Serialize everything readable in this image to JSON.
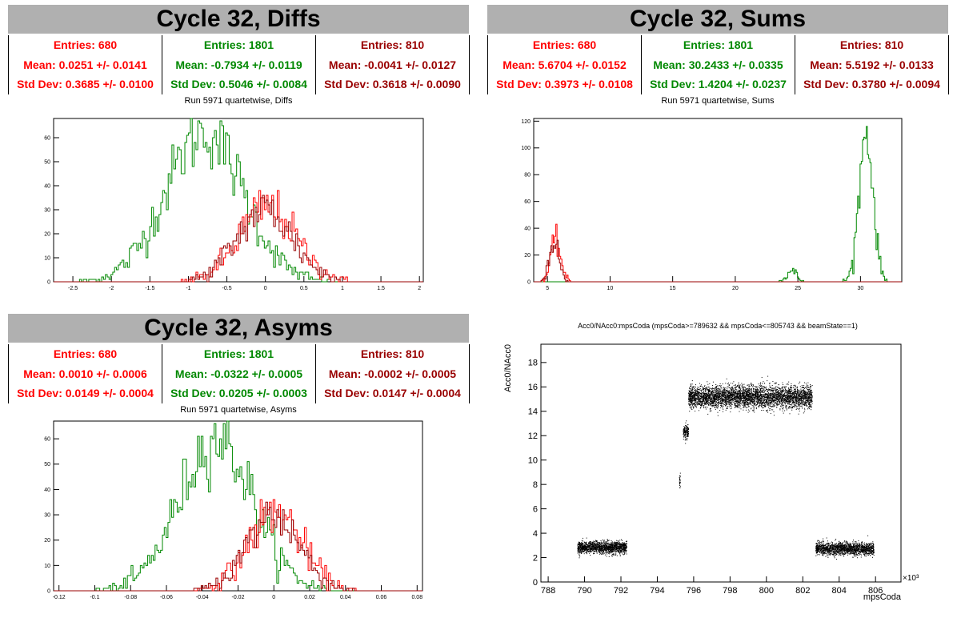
{
  "colors": {
    "red": "#ff0000",
    "green": "#008800",
    "darkred": "#990000",
    "header_bg": "#b0b0b0"
  },
  "panels": {
    "diffs": {
      "title": "Cycle 32, Diffs",
      "subtitle": "Run 5971 quartetwise, Diffs",
      "stats": [
        {
          "entries": "Entries: 680",
          "mean": "Mean: 0.0251 +/- 0.0141",
          "std": "Std Dev: 0.3685 +/- 0.0100",
          "color": "#ff0000"
        },
        {
          "entries": "Entries: 1801",
          "mean": "Mean: -0.7934 +/- 0.0119",
          "std": "Std Dev: 0.5046 +/- 0.0084",
          "color": "#008800"
        },
        {
          "entries": "Entries: 810",
          "mean": "Mean: -0.0041 +/- 0.0127",
          "std": "Std Dev: 0.3618 +/- 0.0090",
          "color": "#990000"
        }
      ]
    },
    "sums": {
      "title": "Cycle 32, Sums",
      "subtitle": "Run 5971 quartetwise, Sums",
      "stats": [
        {
          "entries": "Entries: 680",
          "mean": "Mean: 5.6704 +/- 0.0152",
          "std": "Std Dev: 0.3973 +/- 0.0108",
          "color": "#ff0000"
        },
        {
          "entries": "Entries: 1801",
          "mean": "Mean: 30.2433 +/- 0.0335",
          "std": "Std Dev: 1.4204 +/- 0.0237",
          "color": "#008800"
        },
        {
          "entries": "Entries: 810",
          "mean": "Mean: 5.5192 +/- 0.0133",
          "std": "Std Dev: 0.3780 +/- 0.0094",
          "color": "#990000"
        }
      ]
    },
    "asyms": {
      "title": "Cycle 32, Asyms",
      "subtitle": "Run 5971 quartetwise, Asyms",
      "stats": [
        {
          "entries": "Entries: 680",
          "mean": "Mean: 0.0010 +/- 0.0006",
          "std": "Std Dev: 0.0149 +/- 0.0004",
          "color": "#ff0000"
        },
        {
          "entries": "Entries: 1801",
          "mean": "Mean: -0.0322 +/- 0.0005",
          "std": "Std Dev: 0.0205 +/- 0.0003",
          "color": "#008800"
        },
        {
          "entries": "Entries: 810",
          "mean": "Mean: -0.0002 +/- 0.0005",
          "std": "Std Dev: 0.0147 +/- 0.0004",
          "color": "#990000"
        }
      ]
    },
    "scatter": {
      "title": "Acc0/NAcc0:mpsCoda (mpsCoda>=789632 && mpsCoda<=805743 && beamState==1)"
    }
  },
  "chart_data": [
    {
      "type": "histogram",
      "id": "diffs",
      "xlim": [
        -2.75,
        2.05
      ],
      "ylim": [
        0,
        68
      ],
      "xticks": [
        -2.5,
        -2,
        -1.5,
        -1,
        -0.5,
        0,
        0.5,
        1,
        1.5,
        2
      ],
      "xtick_labels": [
        "-2.5",
        "-2",
        "-1.5",
        "-1",
        "-0.5",
        "0",
        "0.5",
        "1",
        "1.5",
        "2"
      ],
      "yticks": [
        0,
        10,
        20,
        30,
        40,
        50,
        60
      ],
      "ytick_labels": [
        "0",
        "10",
        "20",
        "30",
        "40",
        "50",
        "60"
      ],
      "series": [
        {
          "color": "#008800",
          "entries": 1801,
          "mean": -0.7934,
          "std": 0.5046,
          "peak": 62
        },
        {
          "color": "#ff0000",
          "entries": 680,
          "mean": 0.0251,
          "std": 0.3685,
          "peak": 31
        },
        {
          "color": "#990000",
          "entries": 810,
          "mean": -0.0041,
          "std": 0.3618,
          "peak": 30
        }
      ]
    },
    {
      "type": "histogram",
      "id": "sums",
      "xlim": [
        3.9,
        33.3
      ],
      "ylim": [
        0,
        122
      ],
      "xticks": [
        5,
        10,
        15,
        20,
        25,
        30
      ],
      "xtick_labels": [
        "5",
        "10",
        "15",
        "20",
        "25",
        "30"
      ],
      "yticks": [
        0,
        20,
        40,
        60,
        80,
        100,
        120
      ],
      "ytick_labels": [
        "0",
        "20",
        "40",
        "60",
        "80",
        "100",
        "120"
      ],
      "series": [
        {
          "color": "#008800",
          "entries": 1801,
          "components": [
            {
              "mean": 30.45,
              "std": 0.55,
              "peak": 112
            },
            {
              "mean": 24.5,
              "std": 0.4,
              "peak": 8
            }
          ]
        },
        {
          "color": "#ff0000",
          "entries": 680,
          "components": [
            {
              "mean": 5.67,
              "std": 0.4,
              "peak": 30
            }
          ]
        },
        {
          "color": "#990000",
          "entries": 810,
          "components": [
            {
              "mean": 5.52,
              "std": 0.38,
              "peak": 31
            }
          ]
        }
      ]
    },
    {
      "type": "histogram",
      "id": "asyms",
      "xlim": [
        -0.123,
        0.083
      ],
      "ylim": [
        0,
        67
      ],
      "xticks": [
        -0.12,
        -0.1,
        -0.08,
        -0.06,
        -0.04,
        -0.02,
        0,
        0.02,
        0.04,
        0.06,
        0.08
      ],
      "xtick_labels": [
        "-0.12",
        "-0.1",
        "-0.08",
        "-0.06",
        "-0.04",
        "-0.02",
        "0",
        "0.02",
        "0.04",
        "0.06",
        "0.08"
      ],
      "yticks": [
        0,
        10,
        20,
        30,
        40,
        50,
        60
      ],
      "ytick_labels": [
        "0",
        "10",
        "20",
        "30",
        "40",
        "50",
        "60"
      ],
      "series": [
        {
          "color": "#008800",
          "entries": 1801,
          "mean": -0.0322,
          "std": 0.0205,
          "peak": 60
        },
        {
          "color": "#ff0000",
          "entries": 680,
          "mean": 0.001,
          "std": 0.0149,
          "peak": 31
        },
        {
          "color": "#990000",
          "entries": 810,
          "mean": -0.0002,
          "std": 0.0147,
          "peak": 30
        }
      ]
    },
    {
      "type": "scatter",
      "id": "scatter",
      "xlabel": "mpsCoda",
      "ylabel": "Acc0/NAcc0",
      "x_multiplier": "×10³",
      "xlim": [
        787.6,
        807.4
      ],
      "ylim": [
        0,
        19.5
      ],
      "xticks": [
        788,
        790,
        792,
        794,
        796,
        798,
        800,
        802,
        804,
        806
      ],
      "xtick_labels": [
        "788",
        "790",
        "792",
        "794",
        "796",
        "798",
        "800",
        "802",
        "804",
        "806"
      ],
      "yticks": [
        0,
        2,
        4,
        6,
        8,
        10,
        12,
        14,
        16,
        18
      ],
      "ytick_labels": [
        "0",
        "2",
        "4",
        "6",
        "8",
        "10",
        "12",
        "14",
        "16",
        "18"
      ],
      "clusters": [
        {
          "x": [
            789.6,
            792.3
          ],
          "y_mean": 2.85,
          "y_spread": 0.5,
          "count": 1500
        },
        {
          "x": [
            795.2,
            795.25
          ],
          "y_mean": 8.2,
          "y_spread": 0.6,
          "count": 25
        },
        {
          "x": [
            795.4,
            795.7
          ],
          "y_mean": 12.3,
          "y_spread": 0.6,
          "count": 160
        },
        {
          "x": [
            795.7,
            802.5
          ],
          "y_mean": 15.2,
          "y_spread": 0.9,
          "count": 4200
        },
        {
          "x": [
            802.7,
            805.9
          ],
          "y_mean": 2.75,
          "y_spread": 0.5,
          "count": 1700
        }
      ]
    }
  ]
}
